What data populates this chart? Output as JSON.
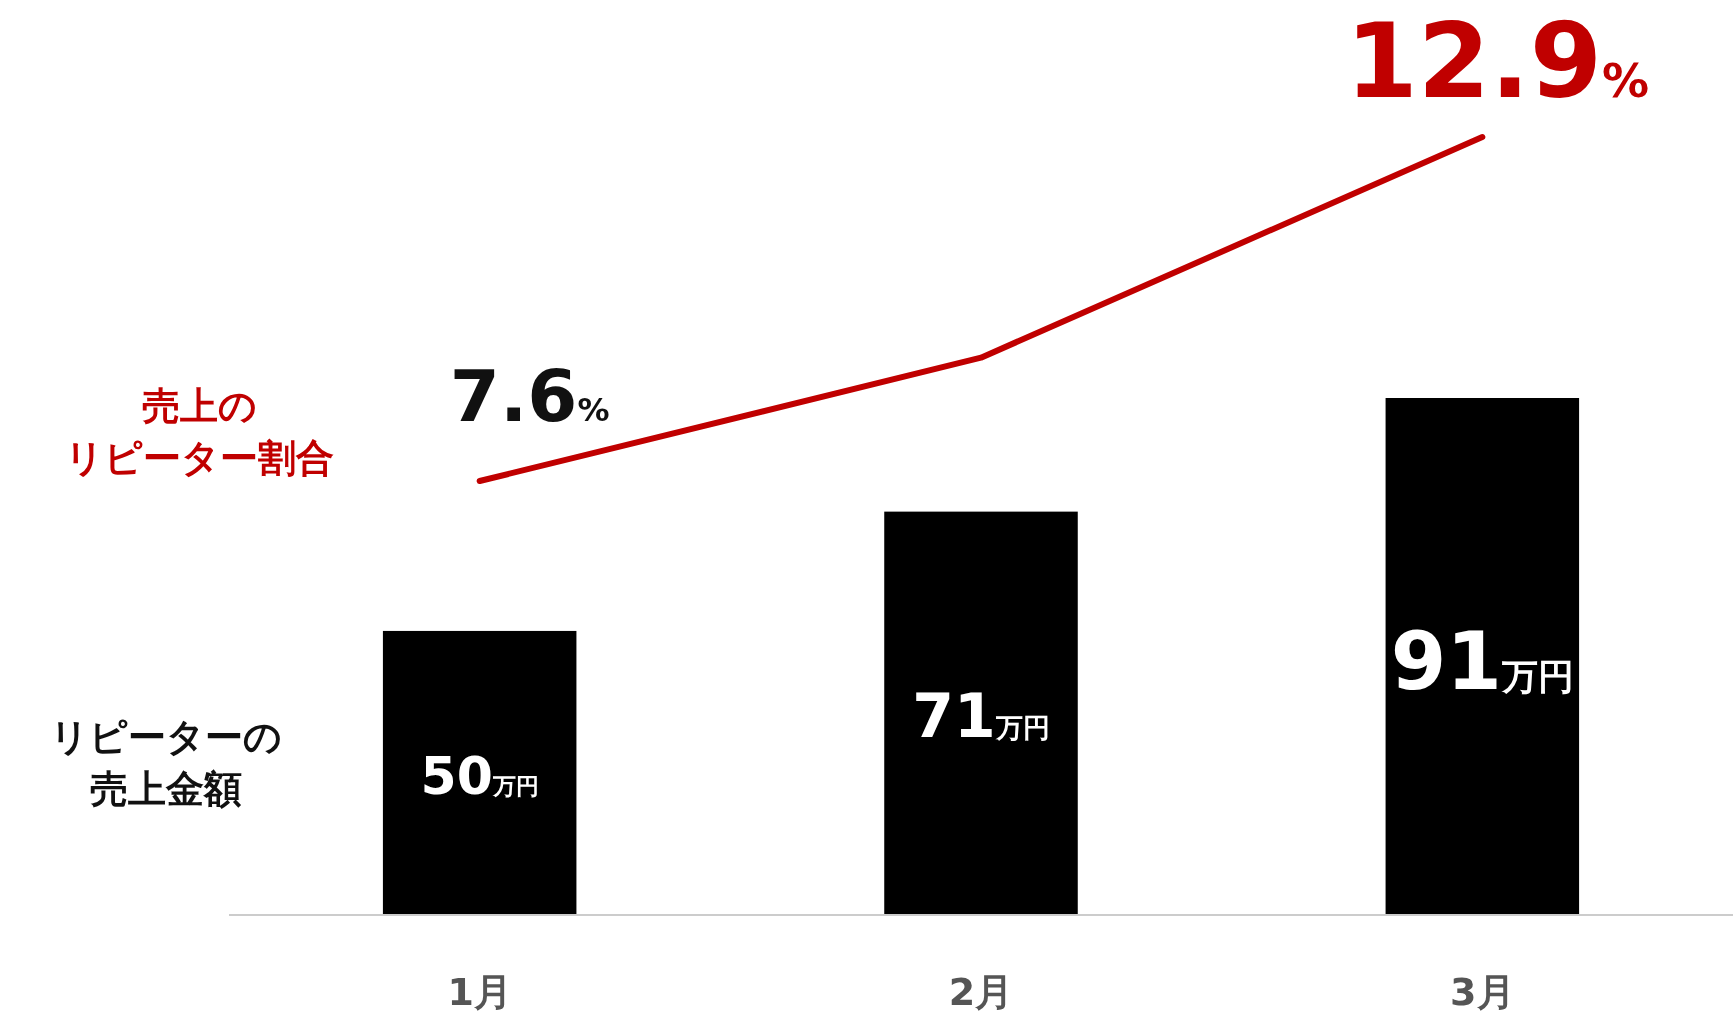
{
  "chart_data": {
    "type": "bar",
    "categories": [
      "1月",
      "2月",
      "3月"
    ],
    "ylabel": "リピーターの売上金額",
    "y2label": "売上のリピーター割合",
    "tick_labels": "x",
    "series": [
      {
        "type": "bar",
        "color": "#000000",
        "values": [
          50,
          71,
          91
        ],
        "value_labels": [
          "50万円",
          "71万円",
          "91万円"
        ]
      },
      {
        "type": "line",
        "axis": "y2",
        "color": "#c00000",
        "values": [
          7.6,
          9.5,
          12.9
        ],
        "value_labels": [
          "7.6%",
          null,
          "12.9%"
        ]
      }
    ]
  }
}
